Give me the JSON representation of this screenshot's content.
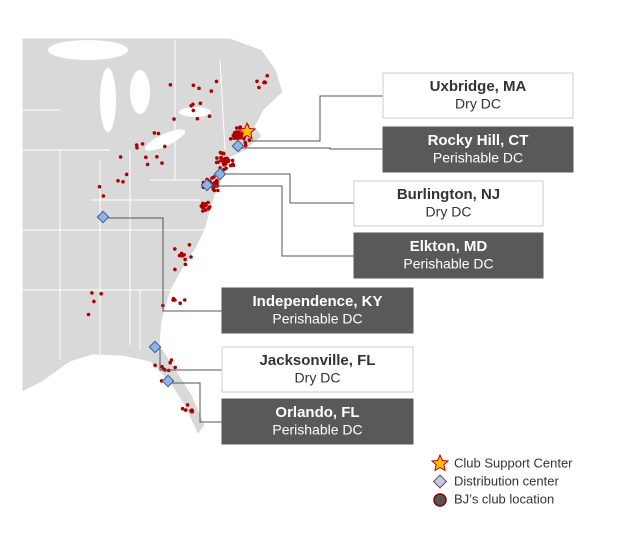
{
  "locations": [
    {
      "name": "Uxbridge, MA",
      "kind": "Dry DC"
    },
    {
      "name": "Rocky Hill, CT",
      "kind": "Perishable DC"
    },
    {
      "name": "Burlington, NJ",
      "kind": "Dry DC"
    },
    {
      "name": "Elkton, MD",
      "kind": "Perishable DC"
    },
    {
      "name": "Independence, KY",
      "kind": "Perishable DC"
    },
    {
      "name": "Jacksonville, FL",
      "kind": "Dry DC"
    },
    {
      "name": "Orlando, FL",
      "kind": "Perishable DC"
    }
  ],
  "legend": [
    "Club Support Center",
    "Distribution center",
    "BJ’s club location"
  ]
}
